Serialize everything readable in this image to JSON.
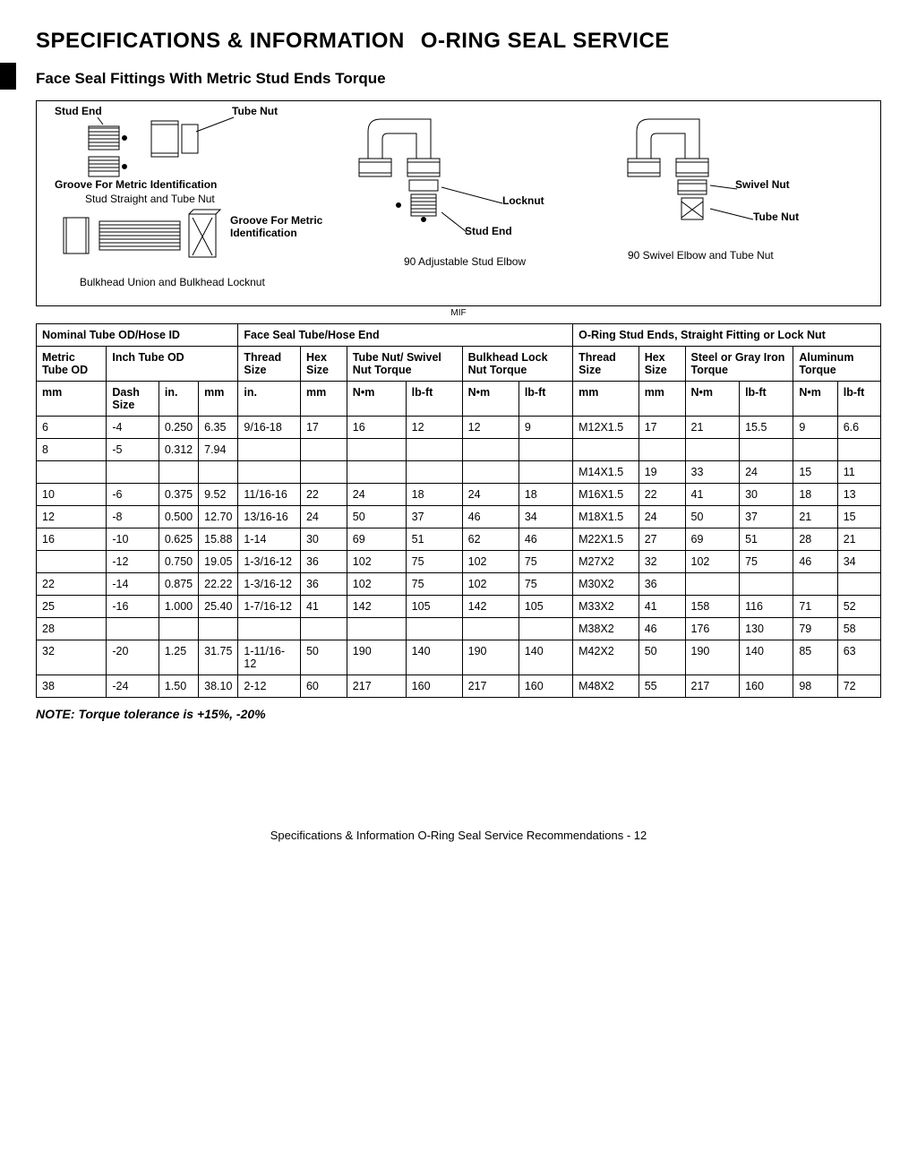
{
  "page": {
    "title_left": "SPECIFICATIONS & INFORMATION",
    "title_right": "O-RING SEAL SERVICE",
    "subtitle": "Face Seal Fittings With Metric Stud Ends Torque",
    "note": "NOTE: Torque tolerance is +15%, -20%",
    "footer": "Specifications & Information   O-Ring Seal Service Recommendations  - 12",
    "mif": "MIF"
  },
  "diagram": {
    "stud_end": "Stud End",
    "tube_nut": "Tube Nut",
    "groove_id": "Groove For Metric Identification",
    "stud_straight": "Stud Straight and Tube Nut",
    "groove_id2": "Groove For Metric\nIdentification",
    "bulkhead": "Bulkhead Union and Bulkhead Locknut",
    "locknut": "Locknut",
    "stud_end2": "Stud End",
    "adj_elbow": "90 Adjustable Stud Elbow",
    "swivel_nut": "Swivel Nut",
    "tube_nut2": "Tube Nut",
    "swivel_elbow": "90 Swivel Elbow and Tube Nut"
  },
  "table": {
    "header_groups": {
      "g1": "Nominal Tube OD/Hose ID",
      "g2": "Face Seal Tube/Hose End",
      "g3": "O-Ring Stud Ends, Straight Fitting or Lock Nut"
    },
    "header_mid": {
      "metric_tube_od": "Metric Tube OD",
      "inch_tube_od": "Inch Tube OD",
      "thread_size": "Thread Size",
      "hex_size": "Hex Size",
      "tube_nut_torque": "Tube Nut/ Swivel Nut Torque",
      "bulkhead_torque": "Bulkhead Lock Nut Torque",
      "thread_size2": "Thread Size",
      "hex_size2": "Hex Size",
      "steel_torque": "Steel or Gray Iron Torque",
      "alum_torque": "Aluminum Torque"
    },
    "header_units": {
      "mm": "mm",
      "dash": "Dash Size",
      "in": "in.",
      "mm2": "mm",
      "in2": "in.",
      "mm3": "mm",
      "nm": "N•m",
      "lbft": "lb-ft",
      "nm2": "N•m",
      "lbft2": "lb-ft",
      "mm4": "mm",
      "mm5": "mm",
      "nm3": "N•m",
      "lbft3": "lb-ft",
      "nm4": "N•m",
      "lbft4": "lb-ft"
    },
    "rows": [
      [
        "6",
        "-4",
        "0.250",
        "6.35",
        "9/16-18",
        "17",
        "16",
        "12",
        "12",
        "9",
        "M12X1.5",
        "17",
        "21",
        "15.5",
        "9",
        "6.6"
      ],
      [
        "8",
        "-5",
        "0.312",
        "7.94",
        "",
        "",
        "",
        "",
        "",
        "",
        "",
        "",
        "",
        "",
        "",
        ""
      ],
      [
        "",
        "",
        "",
        "",
        "",
        "",
        "",
        "",
        "",
        "",
        "M14X1.5",
        "19",
        "33",
        "24",
        "15",
        "11"
      ],
      [
        "10",
        "-6",
        "0.375",
        "9.52",
        "11/16-16",
        "22",
        "24",
        "18",
        "24",
        "18",
        "M16X1.5",
        "22",
        "41",
        "30",
        "18",
        "13"
      ],
      [
        "12",
        "-8",
        "0.500",
        "12.70",
        "13/16-16",
        "24",
        "50",
        "37",
        "46",
        "34",
        "M18X1.5",
        "24",
        "50",
        "37",
        "21",
        "15"
      ],
      [
        "16",
        "-10",
        "0.625",
        "15.88",
        "1-14",
        "30",
        "69",
        "51",
        "62",
        "46",
        "M22X1.5",
        "27",
        "69",
        "51",
        "28",
        "21"
      ],
      [
        "",
        "-12",
        "0.750",
        "19.05",
        "1-3/16-12",
        "36",
        "102",
        "75",
        "102",
        "75",
        "M27X2",
        "32",
        "102",
        "75",
        "46",
        "34"
      ],
      [
        "22",
        "-14",
        "0.875",
        "22.22",
        "1-3/16-12",
        "36",
        "102",
        "75",
        "102",
        "75",
        "M30X2",
        "36",
        "",
        "",
        "",
        ""
      ],
      [
        "25",
        "-16",
        "1.000",
        "25.40",
        "1-7/16-12",
        "41",
        "142",
        "105",
        "142",
        "105",
        "M33X2",
        "41",
        "158",
        "116",
        "71",
        "52"
      ],
      [
        "28",
        "",
        "",
        "",
        "",
        "",
        "",
        "",
        "",
        "",
        "M38X2",
        "46",
        "176",
        "130",
        "79",
        "58"
      ],
      [
        "32",
        "-20",
        "1.25",
        "31.75",
        "1-11/16-12",
        "50",
        "190",
        "140",
        "190",
        "140",
        "M42X2",
        "50",
        "190",
        "140",
        "85",
        "63"
      ],
      [
        "38",
        "-24",
        "1.50",
        "38.10",
        "2-12",
        "60",
        "217",
        "160",
        "217",
        "160",
        "M48X2",
        "55",
        "217",
        "160",
        "98",
        "72"
      ]
    ]
  },
  "style": {
    "border_color": "#000000",
    "bg": "#ffffff"
  }
}
